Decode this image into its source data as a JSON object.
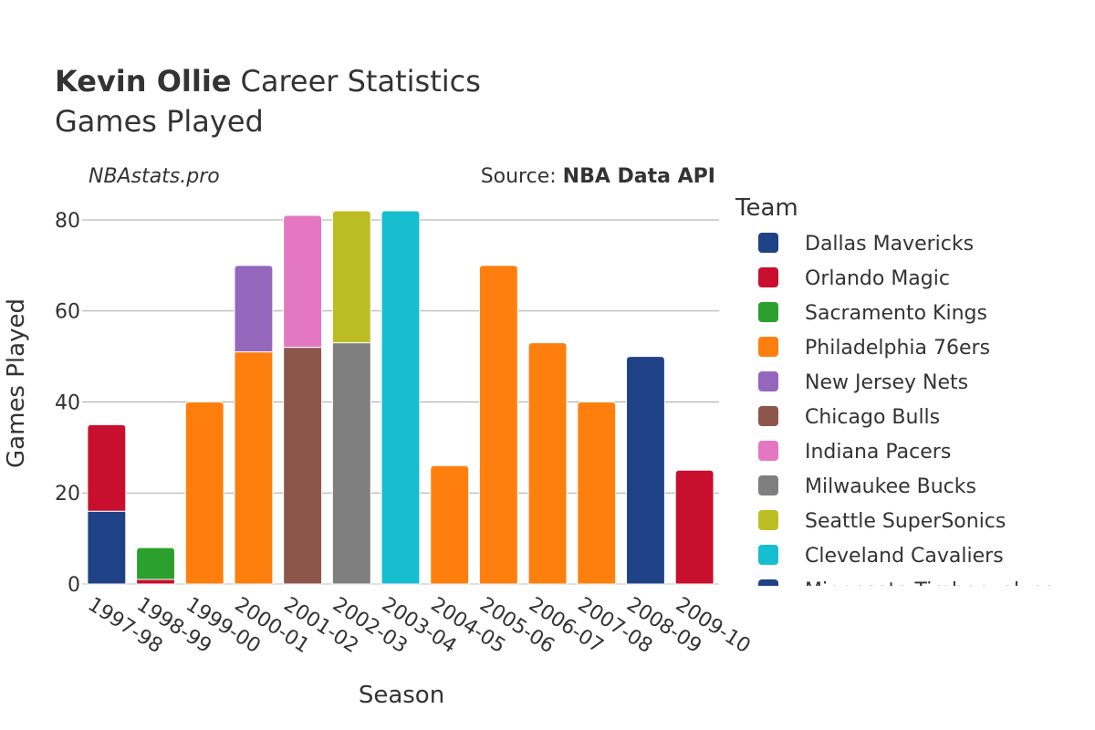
{
  "header": {
    "title_bold": "Kevin Ollie",
    "title_rest": "Career Statistics",
    "subtitle": "Games Played",
    "watermark": "NBAstats.pro",
    "source_prefix": "Source: ",
    "source_name": "NBA Data API"
  },
  "chart_data": {
    "type": "bar",
    "stacked": true,
    "xlabel": "Season",
    "ylabel": "Games Played",
    "ylim": [
      0,
      85
    ],
    "yticks": [
      0,
      20,
      40,
      60,
      80
    ],
    "grid": true,
    "legend_title": "Team",
    "legend_position": "right",
    "categories": [
      "1997-98",
      "1998-99",
      "1999-00",
      "2000-01",
      "2001-02",
      "2002-03",
      "2003-04",
      "2004-05",
      "2005-06",
      "2006-07",
      "2007-08",
      "2008-09",
      "2009-10"
    ],
    "series": [
      {
        "name": "Dallas Mavericks",
        "color": "#1f4287",
        "values": [
          16,
          0,
          0,
          0,
          0,
          0,
          0,
          0,
          0,
          0,
          0,
          0,
          0
        ]
      },
      {
        "name": "Orlando Magic",
        "color": "#c8102e",
        "values": [
          19,
          1,
          0,
          0,
          0,
          0,
          0,
          0,
          0,
          0,
          0,
          0,
          25
        ]
      },
      {
        "name": "Sacramento Kings",
        "color": "#2ca02c",
        "values": [
          0,
          7,
          0,
          0,
          0,
          0,
          0,
          0,
          0,
          0,
          0,
          0,
          0
        ]
      },
      {
        "name": "Philadelphia 76ers",
        "color": "#ff7f0e",
        "values": [
          0,
          0,
          40,
          51,
          0,
          0,
          0,
          26,
          70,
          53,
          40,
          0,
          0
        ]
      },
      {
        "name": "New Jersey Nets",
        "color": "#9467bd",
        "values": [
          0,
          0,
          0,
          19,
          0,
          0,
          0,
          0,
          0,
          0,
          0,
          0,
          0
        ]
      },
      {
        "name": "Chicago Bulls",
        "color": "#8c564b",
        "values": [
          0,
          0,
          0,
          0,
          52,
          0,
          0,
          0,
          0,
          0,
          0,
          0,
          0
        ]
      },
      {
        "name": "Indiana Pacers",
        "color": "#e377c2",
        "values": [
          0,
          0,
          0,
          0,
          29,
          0,
          0,
          0,
          0,
          0,
          0,
          0,
          0
        ]
      },
      {
        "name": "Milwaukee Bucks",
        "color": "#7f7f7f",
        "values": [
          0,
          0,
          0,
          0,
          0,
          53,
          0,
          0,
          0,
          0,
          0,
          0,
          0
        ]
      },
      {
        "name": "Seattle SuperSonics",
        "color": "#bcbd22",
        "values": [
          0,
          0,
          0,
          0,
          0,
          29,
          0,
          0,
          0,
          0,
          0,
          0,
          0
        ]
      },
      {
        "name": "Cleveland Cavaliers",
        "color": "#17becf",
        "values": [
          0,
          0,
          0,
          0,
          0,
          0,
          82,
          0,
          0,
          0,
          0,
          0,
          0
        ]
      },
      {
        "name": "Minnesota Timberwolves",
        "color": "#1f4287",
        "values": [
          0,
          0,
          0,
          0,
          0,
          0,
          0,
          0,
          0,
          0,
          0,
          50,
          0
        ]
      }
    ]
  }
}
